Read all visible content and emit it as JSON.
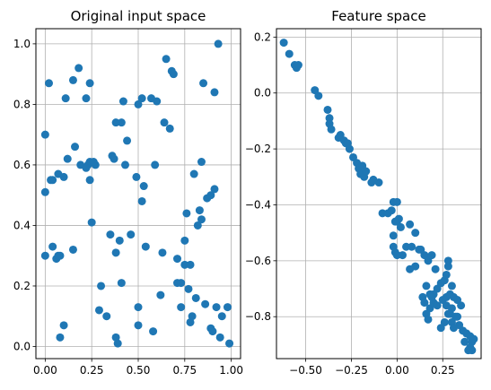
{
  "chart_data": [
    {
      "type": "scatter",
      "title": "Original input space",
      "xlabel": "",
      "ylabel": "",
      "xlim": [
        -0.05,
        1.05
      ],
      "ylim": [
        -0.04,
        1.05
      ],
      "xticks": [
        0.0,
        0.25,
        0.5,
        0.75,
        1.0
      ],
      "xtick_labels": [
        "0.00",
        "0.25",
        "0.50",
        "0.75",
        "1.00"
      ],
      "yticks": [
        0.0,
        0.2,
        0.4,
        0.6,
        0.8,
        1.0
      ],
      "ytick_labels": [
        "0.0",
        "0.2",
        "0.4",
        "0.6",
        "0.8",
        "1.0"
      ],
      "grid": true,
      "color": "#1f77b4",
      "x": [
        0.0,
        0.02,
        0.11,
        0.18,
        0.24,
        0.22,
        0.15,
        0.24,
        0.41,
        0.5,
        0.52,
        0.57,
        0.6,
        0.65,
        0.68,
        0.69,
        0.64,
        0.67,
        0.42,
        0.38,
        0.44,
        0.85,
        0.93,
        0.91,
        0.0,
        0.04,
        0.07,
        0.03,
        0.12,
        0.16,
        0.19,
        0.23,
        0.24,
        0.27,
        0.26,
        0.22,
        0.08,
        0.06,
        0.36,
        0.37,
        0.43,
        0.59,
        0.53,
        0.52,
        0.49,
        0.8,
        0.83,
        0.84,
        0.87,
        0.89,
        0.91,
        0.0,
        0.04,
        0.07,
        0.1,
        0.15,
        0.25,
        0.35,
        0.38,
        0.4,
        0.46,
        0.54,
        0.63,
        0.76,
        0.75,
        0.82,
        0.84,
        0.71,
        0.75,
        0.78,
        0.73,
        0.77,
        0.81,
        0.86,
        0.92,
        0.98,
        0.78,
        0.73,
        0.3,
        0.41,
        0.5,
        0.62,
        0.29,
        0.33,
        0.38,
        0.39,
        0.5,
        0.58,
        0.08,
        0.1,
        0.71,
        0.79,
        0.89,
        0.9,
        0.94,
        0.99,
        0.95
      ],
      "y": [
        0.7,
        0.87,
        0.82,
        0.92,
        0.87,
        0.82,
        0.88,
        0.61,
        0.74,
        0.8,
        0.82,
        0.82,
        0.81,
        0.95,
        0.91,
        0.9,
        0.74,
        0.72,
        0.81,
        0.74,
        0.68,
        0.87,
        1.0,
        0.84,
        0.51,
        0.55,
        0.57,
        0.55,
        0.62,
        0.66,
        0.6,
        0.6,
        0.55,
        0.6,
        0.61,
        0.59,
        0.3,
        0.29,
        0.63,
        0.62,
        0.6,
        0.6,
        0.53,
        0.48,
        0.56,
        0.57,
        0.45,
        0.61,
        0.49,
        0.5,
        0.52,
        0.3,
        0.33,
        0.3,
        0.56,
        0.32,
        0.41,
        0.37,
        0.31,
        0.35,
        0.37,
        0.33,
        0.31,
        0.44,
        0.35,
        0.4,
        0.42,
        0.21,
        0.27,
        0.27,
        0.21,
        0.19,
        0.16,
        0.14,
        0.13,
        0.13,
        0.08,
        0.13,
        0.2,
        0.21,
        0.13,
        0.17,
        0.12,
        0.1,
        0.03,
        0.01,
        0.07,
        0.05,
        0.03,
        0.07,
        0.29,
        0.1,
        0.06,
        0.05,
        0.03,
        0.01,
        0.1
      ]
    },
    {
      "type": "scatter",
      "title": "Feature space",
      "xlabel": "",
      "ylabel": "",
      "xlim": [
        -0.66,
        0.46
      ],
      "ylim": [
        -0.95,
        0.23
      ],
      "xticks": [
        -0.5,
        -0.25,
        0.0,
        0.25
      ],
      "xtick_labels": [
        "−0.50",
        "−0.25",
        "0.00",
        "0.25"
      ],
      "yticks": [
        -0.8,
        -0.6,
        -0.4,
        -0.2,
        0.0,
        0.2
      ],
      "ytick_labels": [
        "−0.8",
        "−0.6",
        "−0.4",
        "−0.2",
        "0.0",
        "0.2"
      ],
      "grid": true,
      "color": "#1f77b4",
      "x": [
        -0.62,
        -0.59,
        -0.56,
        -0.55,
        -0.54,
        -0.45,
        -0.43,
        -0.38,
        -0.37,
        -0.37,
        -0.36,
        -0.32,
        -0.31,
        -0.29,
        -0.28,
        -0.27,
        -0.26,
        -0.24,
        -0.22,
        -0.21,
        -0.2,
        -0.19,
        -0.18,
        -0.17,
        -0.14,
        -0.13,
        -0.1,
        -0.08,
        -0.05,
        -0.03,
        -0.02,
        0.0,
        0.0,
        0.01,
        -0.01,
        -0.02,
        0.02,
        -0.02,
        -0.01,
        0.05,
        0.07,
        0.08,
        0.1,
        0.12,
        0.15,
        0.17,
        0.19,
        0.21,
        0.13,
        0.1,
        0.07,
        0.03,
        0.0,
        0.16,
        0.18,
        0.14,
        0.2,
        0.22,
        0.24,
        0.26,
        0.27,
        0.28,
        0.3,
        0.15,
        0.16,
        0.18,
        0.2,
        0.17,
        0.19,
        0.22,
        0.25,
        0.27,
        0.29,
        0.31,
        0.33,
        0.35,
        0.3,
        0.28,
        0.26,
        0.24,
        0.3,
        0.32,
        0.34,
        0.36,
        0.27,
        0.29,
        0.31,
        0.33,
        0.38,
        0.4,
        0.41,
        0.42,
        0.37,
        0.4,
        0.41,
        0.39,
        0.28
      ],
      "y": [
        0.18,
        0.14,
        0.1,
        0.09,
        0.1,
        0.01,
        -0.01,
        -0.06,
        -0.09,
        -0.11,
        -0.13,
        -0.16,
        -0.15,
        -0.17,
        -0.18,
        -0.18,
        -0.2,
        -0.23,
        -0.25,
        -0.27,
        -0.29,
        -0.26,
        -0.3,
        -0.28,
        -0.32,
        -0.31,
        -0.32,
        -0.43,
        -0.43,
        -0.42,
        -0.39,
        -0.39,
        -0.46,
        -0.45,
        -0.46,
        -0.51,
        -0.48,
        -0.55,
        -0.57,
        -0.55,
        -0.47,
        -0.55,
        -0.5,
        -0.56,
        -0.58,
        -0.6,
        -0.58,
        -0.63,
        -0.56,
        -0.62,
        -0.63,
        -0.58,
        -0.58,
        -0.69,
        -0.72,
        -0.73,
        -0.72,
        -0.7,
        -0.68,
        -0.67,
        -0.65,
        -0.62,
        -0.69,
        -0.75,
        -0.79,
        -0.77,
        -0.75,
        -0.81,
        -0.73,
        -0.76,
        -0.74,
        -0.73,
        -0.72,
        -0.73,
        -0.74,
        -0.76,
        -0.77,
        -0.79,
        -0.82,
        -0.84,
        -0.82,
        -0.8,
        -0.83,
        -0.85,
        -0.76,
        -0.79,
        -0.84,
        -0.8,
        -0.86,
        -0.87,
        -0.89,
        -0.88,
        -0.89,
        -0.91,
        -0.92,
        -0.92,
        -0.6
      ]
    }
  ]
}
